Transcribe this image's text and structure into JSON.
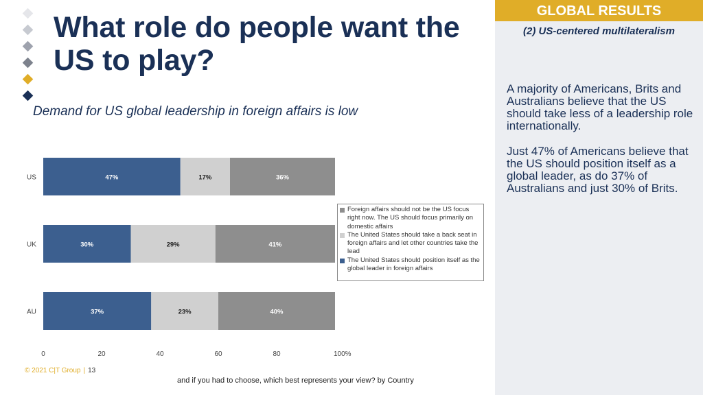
{
  "slide": {
    "title": "What role do people want the US to play?",
    "subtitle": "Demand for US global leadership in foreign affairs is low",
    "footer_copyright": "© 2021 C|T Group",
    "footer_page": "13",
    "footer_question": "and if you had to choose, which best represents your view? by Country"
  },
  "decoration": {
    "diamond_colors": [
      "#e5e6ea",
      "#c7cad1",
      "#9ea2ad",
      "#7d828d",
      "#e0ad28",
      "#1a3056"
    ]
  },
  "sidebar": {
    "header": "GLOBAL RESULTS",
    "subheader": "(2) US-centered multilateralism",
    "paragraphs": [
      "A majority of Americans, Brits and Australians believe that the US should take less of a leadership role internationally.",
      "Just 47% of Americans believe that the US should position itself as a global leader, as do 37% of Australians and just 30% of Brits."
    ]
  },
  "chart_data": {
    "type": "bar",
    "orientation": "horizontal",
    "stacked": true,
    "categories": [
      "US",
      "UK",
      "AU"
    ],
    "series": [
      {
        "name": "The United States should position itself as the global leader in foreign affairs",
        "color": "#3c5f8f",
        "label_color": "#ffffff",
        "values": [
          47,
          30,
          37
        ]
      },
      {
        "name": "The United States should take a back seat in foreign affairs and let other countries take the lead",
        "color": "#d0d0d0",
        "label_color": "#222222",
        "values": [
          17,
          29,
          23
        ]
      },
      {
        "name": "Foreign affairs should not be the US focus right now. The US should focus primarily on domestic affairs",
        "color": "#8e8e8e",
        "label_color": "#ffffff",
        "values": [
          36,
          41,
          40
        ]
      }
    ],
    "data_labels": [
      [
        "47%",
        "17%",
        "36%"
      ],
      [
        "30%",
        "29%",
        "41%"
      ],
      [
        "37%",
        "23%",
        "40%"
      ]
    ],
    "legend_order": [
      2,
      1,
      0
    ],
    "x_ticks": [
      "0",
      "20",
      "40",
      "60",
      "80",
      "100%"
    ],
    "xlim": [
      0,
      100
    ],
    "grid": false,
    "legend_position": "right"
  }
}
